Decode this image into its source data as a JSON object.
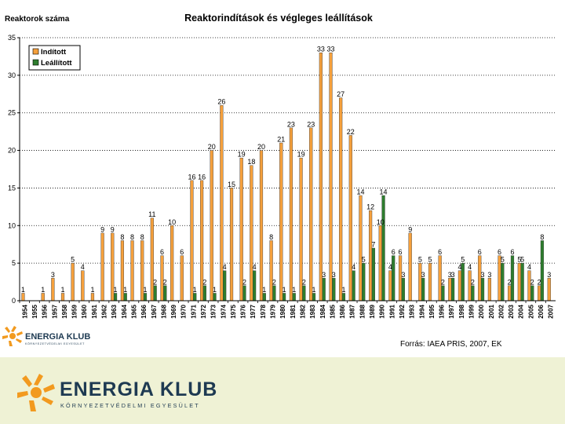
{
  "chart_data": {
    "type": "bar",
    "title": "Reaktorindítások és végleges leállítások",
    "ylabel": "Reaktorok száma",
    "xlabel": "",
    "ylim": [
      0,
      35
    ],
    "yticks": [
      0,
      5,
      10,
      15,
      20,
      25,
      30,
      35
    ],
    "y_tick_labels": [
      "0",
      "5",
      "10",
      "15",
      "20",
      "25",
      "30",
      "35"
    ],
    "grid": true,
    "legend_position": "top-left",
    "categories": [
      "1954",
      "1955",
      "1956",
      "1957",
      "1958",
      "1959",
      "1960",
      "1961",
      "1962",
      "1963",
      "1964",
      "1965",
      "1966",
      "1967",
      "1968",
      "1969",
      "1970",
      "1971",
      "1972",
      "1973",
      "1974",
      "1975",
      "1976",
      "1977",
      "1978",
      "1979",
      "1980",
      "1981",
      "1982",
      "1983",
      "1984",
      "1985",
      "1986",
      "1987",
      "1988",
      "1989",
      "1990",
      "1991",
      "1992",
      "1993",
      "1994",
      "1995",
      "1996",
      "1997",
      "1998",
      "1999",
      "2000",
      "2001",
      "2002",
      "2003",
      "2004",
      "2005",
      "2006",
      "2007"
    ],
    "series": [
      {
        "name": "Indított",
        "color": "#f5a03c",
        "values": [
          1,
          0,
          1,
          3,
          1,
          5,
          4,
          1,
          9,
          9,
          8,
          8,
          8,
          11,
          6,
          10,
          6,
          16,
          16,
          20,
          26,
          15,
          19,
          18,
          20,
          8,
          21,
          23,
          19,
          23,
          33,
          33,
          27,
          22,
          14,
          12,
          10,
          4,
          6,
          9,
          5,
          5,
          6,
          3,
          4,
          4,
          6,
          3,
          6,
          2,
          5,
          4,
          2,
          3
        ],
        "labels": [
          "1",
          "",
          "1",
          "3",
          "1",
          "5",
          "4",
          "1",
          "9",
          "9",
          "8",
          "8",
          "8",
          "11",
          "6",
          "10",
          "6",
          "16",
          "16",
          "20",
          "26",
          "15",
          "19",
          "18",
          "20",
          "8",
          "21",
          "23",
          "19",
          "23",
          "33",
          "33",
          "27",
          "22",
          "14",
          "12",
          "10",
          "4",
          "6",
          "9",
          "5",
          "5",
          "6",
          "3",
          "4",
          "4",
          "6",
          "3",
          "6",
          "2",
          "5",
          "4",
          "2",
          "3"
        ]
      },
      {
        "name": "Leállított",
        "color": "#2e7d2e",
        "values": [
          0,
          0,
          0,
          0,
          0,
          0,
          0,
          0,
          0,
          1,
          1,
          0,
          1,
          2,
          2,
          0,
          0,
          1,
          2,
          1,
          4,
          0,
          2,
          4,
          1,
          2,
          1,
          1,
          2,
          1,
          3,
          3,
          1,
          4,
          5,
          7,
          14,
          6,
          3,
          0,
          3,
          0,
          2,
          3,
          5,
          2,
          3,
          0,
          5,
          6,
          5,
          2,
          8,
          0
        ],
        "labels": [
          "",
          "",
          "",
          "",
          "",
          "",
          "",
          "",
          "",
          "1",
          "1",
          "",
          "1",
          "2",
          "2",
          "",
          "",
          "1",
          "2",
          "1",
          "4",
          "",
          "2",
          "4",
          "1",
          "2",
          "1",
          "1",
          "2",
          "1",
          "3",
          "3",
          "1",
          "4",
          "5",
          "7",
          "14",
          "6",
          "3",
          "",
          "3",
          "",
          "2",
          "3",
          "5",
          "2",
          "3",
          "",
          "5",
          "6",
          "5",
          "2",
          "8",
          ""
        ]
      }
    ]
  },
  "source": "Forrás: IAEA PRIS, 2007, EK",
  "logo": {
    "name": "ENERGIA KLUB",
    "subtitle": "KÖRNYEZETVÉDELMI EGYESÜLET"
  },
  "colors": {
    "orange": "#f5a03c",
    "green": "#2e7d2e",
    "footer_bg": "#eff2d5",
    "logo_orange": "#f29a1f",
    "logo_navy": "#1e3a52"
  }
}
